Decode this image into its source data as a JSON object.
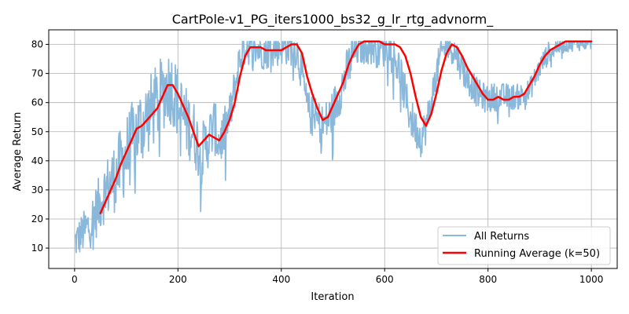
{
  "chart_data": {
    "type": "line",
    "title": "CartPole-v1_PG_iters1000_bs32_g_lr_rtg_advnorm_",
    "xlabel": "Iteration",
    "ylabel": "Average Return",
    "xlim": [
      -50,
      1050
    ],
    "ylim": [
      3,
      85
    ],
    "xticks": [
      0,
      200,
      400,
      600,
      800,
      1000
    ],
    "yticks": [
      10,
      20,
      30,
      40,
      50,
      60,
      70,
      80
    ],
    "grid": true,
    "legend_position": "lower-right",
    "series": [
      {
        "name": "All Returns",
        "color": "#8ab8db",
        "style": "noisy",
        "noise_amplitude": [
          [
            0,
            6
          ],
          [
            100,
            14
          ],
          [
            200,
            13
          ],
          [
            300,
            8
          ],
          [
            400,
            6
          ],
          [
            500,
            8
          ],
          [
            600,
            8
          ],
          [
            700,
            6
          ],
          [
            800,
            5
          ],
          [
            900,
            4
          ],
          [
            1000,
            3
          ]
        ],
        "clip": [
          5,
          81
        ],
        "x": [
          0,
          10,
          20,
          30,
          40,
          50,
          60,
          80,
          100,
          120,
          140,
          160,
          170,
          180,
          190,
          200,
          210,
          230,
          245,
          260,
          270,
          280,
          290,
          300,
          310,
          320,
          330,
          340,
          360,
          380,
          400,
          420,
          430,
          440,
          450,
          460,
          470,
          480,
          490,
          500,
          510,
          520,
          530,
          540,
          550,
          560,
          570,
          580,
          600,
          610,
          620,
          630,
          640,
          650,
          660,
          670,
          680,
          690,
          700,
          710,
          720,
          730,
          740,
          750,
          760,
          770,
          780,
          790,
          800,
          810,
          820,
          830,
          840,
          860,
          880,
          900,
          920,
          940,
          960,
          980,
          1000
        ],
        "values": [
          12,
          14,
          16,
          18,
          22,
          26,
          30,
          35,
          42,
          50,
          55,
          60,
          63,
          66,
          65,
          60,
          55,
          50,
          42,
          48,
          52,
          46,
          50,
          55,
          65,
          75,
          80,
          80,
          78,
          78,
          79,
          79,
          78,
          70,
          58,
          55,
          54,
          52,
          54,
          57,
          62,
          67,
          72,
          77,
          80,
          81,
          81,
          80,
          80,
          79,
          76,
          70,
          62,
          55,
          51,
          48,
          52,
          60,
          70,
          77,
          80,
          79,
          76,
          72,
          68,
          66,
          63,
          62,
          61,
          62,
          62,
          62,
          62,
          62,
          64,
          72,
          78,
          80,
          81,
          81,
          81
        ]
      },
      {
        "name": "Running Average (k=50)",
        "color": "#ff0000",
        "style": "smooth",
        "x": [
          50,
          60,
          70,
          80,
          90,
          100,
          110,
          120,
          130,
          140,
          150,
          160,
          170,
          180,
          190,
          200,
          210,
          220,
          230,
          240,
          250,
          260,
          270,
          280,
          290,
          300,
          310,
          320,
          330,
          340,
          350,
          360,
          370,
          380,
          390,
          400,
          410,
          420,
          430,
          440,
          450,
          460,
          470,
          480,
          490,
          500,
          510,
          520,
          530,
          540,
          550,
          560,
          570,
          580,
          590,
          600,
          610,
          620,
          630,
          640,
          650,
          660,
          670,
          680,
          690,
          700,
          710,
          720,
          730,
          740,
          750,
          760,
          770,
          780,
          790,
          800,
          810,
          820,
          830,
          840,
          850,
          860,
          870,
          880,
          890,
          900,
          910,
          920,
          930,
          940,
          950,
          960,
          970,
          980,
          990,
          1000
        ],
        "values": [
          22,
          26,
          30,
          34,
          39,
          43,
          47,
          51,
          52,
          54,
          56,
          58,
          62,
          66,
          66,
          63,
          59,
          55,
          50,
          45,
          47,
          49,
          48,
          47,
          50,
          54,
          60,
          69,
          76,
          79,
          79,
          79,
          78,
          78,
          78,
          78,
          79,
          80,
          80,
          77,
          69,
          63,
          58,
          54,
          55,
          59,
          63,
          67,
          73,
          77,
          80,
          81,
          81,
          81,
          81,
          80,
          80,
          80,
          79,
          76,
          70,
          62,
          55,
          52,
          56,
          63,
          71,
          77,
          80,
          79,
          76,
          72,
          69,
          66,
          63,
          61,
          61,
          62,
          61,
          61,
          62,
          62,
          63,
          66,
          69,
          73,
          76,
          78,
          79,
          80,
          81,
          81,
          81,
          81,
          81,
          81
        ]
      }
    ]
  }
}
